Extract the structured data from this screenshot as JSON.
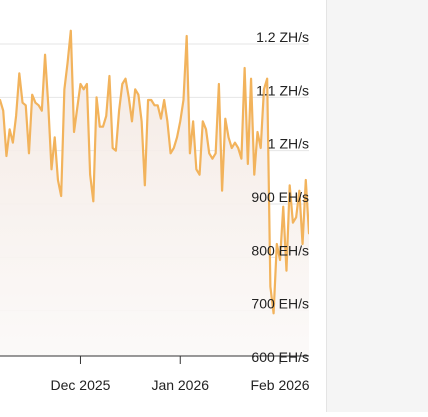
{
  "colors": {
    "line": "#F2B35C",
    "area_top": "#F3E7E0",
    "area_bottom": "#FBF9F8",
    "grid": "#e6e6e6",
    "axis": "#333333",
    "side_panel": "#f5f5f5"
  },
  "chart_data": {
    "type": "line",
    "title": "",
    "xlabel": "",
    "ylabel": "",
    "grid": true,
    "y_unit": "EH/s",
    "ylim": [
      600,
      1200
    ],
    "y_ticks": [
      {
        "value": 1200,
        "label": "1.2 ZH/s"
      },
      {
        "value": 1100,
        "label": "1.1 ZH/s"
      },
      {
        "value": 1000,
        "label": "1 ZH/s"
      },
      {
        "value": 900,
        "label": "900 EH/s"
      },
      {
        "value": 800,
        "label": "800 EH/s"
      },
      {
        "value": 700,
        "label": "700 EH/s"
      },
      {
        "value": 600,
        "label": "600 EH/s"
      }
    ],
    "xlim": [
      "2025-11-06",
      "2026-02-10"
    ],
    "x_ticks": [
      {
        "value": "2025-12-01",
        "label": "Dec 2025"
      },
      {
        "value": "2026-01-01",
        "label": "Jan 2026"
      },
      {
        "value": "2026-02-01",
        "label": "Feb 2026"
      }
    ],
    "series": [
      {
        "x": [
          "2025-11-06",
          "2025-11-07",
          "2025-11-08",
          "2025-11-09",
          "2025-11-10",
          "2025-11-11",
          "2025-11-12",
          "2025-11-13",
          "2025-11-14",
          "2025-11-15",
          "2025-11-16",
          "2025-11-17",
          "2025-11-18",
          "2025-11-19",
          "2025-11-20",
          "2025-11-21",
          "2025-11-22",
          "2025-11-23",
          "2025-11-24",
          "2025-11-25",
          "2025-11-26",
          "2025-11-27",
          "2025-11-28",
          "2025-11-29",
          "2025-11-30",
          "2025-12-01",
          "2025-12-02",
          "2025-12-03",
          "2025-12-04",
          "2025-12-05",
          "2025-12-06",
          "2025-12-07",
          "2025-12-08",
          "2025-12-09",
          "2025-12-10",
          "2025-12-11",
          "2025-12-12",
          "2025-12-13",
          "2025-12-14",
          "2025-12-15",
          "2025-12-16",
          "2025-12-17",
          "2025-12-18",
          "2025-12-19",
          "2025-12-20",
          "2025-12-21",
          "2025-12-22",
          "2025-12-23",
          "2025-12-24",
          "2025-12-25",
          "2025-12-26",
          "2025-12-27",
          "2025-12-28",
          "2025-12-29",
          "2025-12-30",
          "2025-12-31",
          "2026-01-01",
          "2026-01-02",
          "2026-01-03",
          "2026-01-04",
          "2026-01-05",
          "2026-01-06",
          "2026-01-07",
          "2026-01-08",
          "2026-01-09",
          "2026-01-10",
          "2026-01-11",
          "2026-01-12",
          "2026-01-13",
          "2026-01-14",
          "2026-01-15",
          "2026-01-16",
          "2026-01-17",
          "2026-01-18",
          "2026-01-19",
          "2026-01-20",
          "2026-01-21",
          "2026-01-22",
          "2026-01-23",
          "2026-01-24",
          "2026-01-25",
          "2026-01-26",
          "2026-01-27",
          "2026-01-28",
          "2026-01-29",
          "2026-01-30",
          "2026-01-31",
          "2026-02-01",
          "2026-02-02",
          "2026-02-03",
          "2026-02-04",
          "2026-02-05",
          "2026-02-06",
          "2026-02-07",
          "2026-02-08",
          "2026-02-09",
          "2026-02-10"
        ],
        "y": [
          1080,
          1060,
          975,
          1025,
          1000,
          1050,
          1130,
          1075,
          1070,
          980,
          1090,
          1075,
          1070,
          1060,
          1165,
          1070,
          950,
          1010,
          930,
          900,
          1100,
          1150,
          1210,
          1020,
          1065,
          1110,
          1100,
          1110,
          940,
          890,
          1085,
          1030,
          1030,
          1050,
          1125,
          990,
          985,
          1060,
          1110,
          1120,
          1085,
          1040,
          1100,
          1090,
          1040,
          920,
          1080,
          1080,
          1070,
          1070,
          1045,
          1080,
          1040,
          980,
          990,
          1010,
          1040,
          1080,
          1200,
          980,
          1040,
          950,
          940,
          1040,
          1025,
          980,
          970,
          980,
          1110,
          910,
          1045,
          1010,
          990,
          1000,
          990,
          970,
          1140,
          960,
          1120,
          940,
          1020,
          990,
          1100,
          1120,
          730,
          680,
          810,
          780,
          880,
          760,
          920,
          850,
          860,
          910,
          810,
          930,
          830
        ]
      }
    ]
  }
}
